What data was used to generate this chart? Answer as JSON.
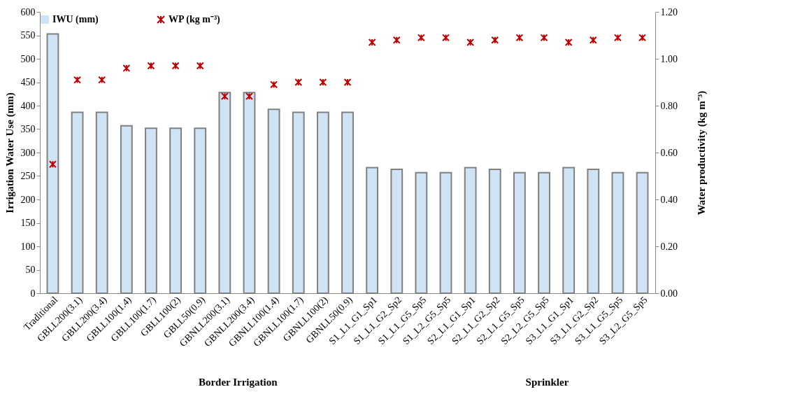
{
  "chart_data": {
    "type": "bar",
    "categories": [
      "Traditional",
      "GBLL200(3.1)",
      "GBLL200(3.4)",
      "GBLL100(1.4)",
      "GBLL100(1.7)",
      "GBLL100(2)",
      "GBLL50(0.9)",
      "GBNLL200(3.1)",
      "GBNLL200(3.4)",
      "GBNLL100(1.4)",
      "GBNLL100(1.7)",
      "GBNLL100(2)",
      "GBNLL50(0.9)",
      "S1_L1_G1_Sp1",
      "S1_L1_G2_Sp2",
      "S1_L1_G5_Sp5",
      "S1_L2_G5_Sp5",
      "S2_L1_G1_Sp1",
      "S2_L1_G2_Sp2",
      "S2_L1_G5_Sp5",
      "S2_L2_G5_Sp5",
      "S3_L1_G1_Sp1",
      "S3_L1_G2_Sp2",
      "S3_L1_G5_Sp5",
      "S3_L2_G5_Sp5"
    ],
    "series": [
      {
        "name": "IWU (mm)",
        "color": "#cfe3f5",
        "values": [
          553,
          386,
          386,
          357,
          352,
          352,
          352,
          428,
          428,
          392,
          386,
          386,
          386,
          268,
          264,
          257,
          257,
          268,
          264,
          257,
          257,
          268,
          264,
          257,
          257
        ]
      },
      {
        "name": "WP (kg m⁻³)",
        "type": "scatter",
        "axis": "y2",
        "color": "#c00000",
        "values": [
          0.55,
          0.91,
          0.91,
          0.96,
          0.97,
          0.97,
          0.97,
          0.84,
          0.84,
          0.89,
          0.9,
          0.9,
          0.9,
          1.07,
          1.08,
          1.09,
          1.09,
          1.07,
          1.08,
          1.09,
          1.09,
          1.07,
          1.08,
          1.09,
          1.09
        ]
      }
    ],
    "ylabel": "Irrigation Water Use (mm)",
    "y2label": "Water productivity  (kg m⁻³)",
    "ylim": [
      0,
      600
    ],
    "yticks": [
      0,
      50,
      100,
      150,
      200,
      250,
      300,
      350,
      400,
      450,
      500,
      550,
      600
    ],
    "y2lim": [
      0,
      1.2
    ],
    "y2ticks": [
      {
        "value": 0,
        "label": "0.00"
      },
      {
        "value": 0.2,
        "label": "0.20"
      },
      {
        "value": 0.4,
        "label": "0.40"
      },
      {
        "value": 0.6,
        "label": "0.60"
      },
      {
        "value": 0.8,
        "label": "0.80"
      },
      {
        "value": 1,
        "label": "1.00"
      },
      {
        "value": 1.2,
        "label": "1.20"
      }
    ],
    "annotations": [
      "Border Irrigation",
      "Sprinkler"
    ],
    "legend": "top",
    "marker": "cross"
  }
}
